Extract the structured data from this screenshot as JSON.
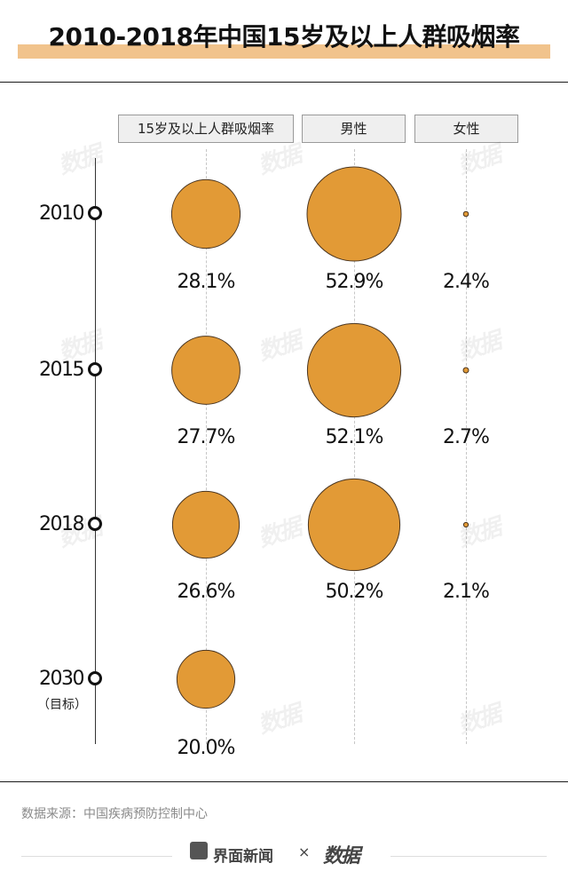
{
  "title": "2010-2018年中国15岁及以上人群吸烟率",
  "chart_data": {
    "type": "bubble",
    "title": "2010-2018年中国15岁及以上人群吸烟率",
    "columns": [
      "15岁及以上人群吸烟率",
      "男性",
      "女性"
    ],
    "rows": [
      {
        "year": "2010",
        "note": "",
        "values": [
          28.1,
          52.9,
          2.4
        ],
        "labels": [
          "28.1%",
          "52.9%",
          "2.4%"
        ]
      },
      {
        "year": "2015",
        "note": "",
        "values": [
          27.7,
          52.1,
          2.7
        ],
        "labels": [
          "27.7%",
          "52.1%",
          "2.7%"
        ]
      },
      {
        "year": "2018",
        "note": "",
        "values": [
          26.6,
          50.2,
          2.1
        ],
        "labels": [
          "26.6%",
          "50.2%",
          "2.1%"
        ]
      },
      {
        "year": "2030",
        "note": "（目标）",
        "values": [
          20.0,
          null,
          null
        ],
        "labels": [
          "20.0%",
          "",
          ""
        ]
      }
    ],
    "color": "#e29a36",
    "stroke": "#4a3520"
  },
  "source": "数据来源：中国疾病预防控制中心",
  "footer": {
    "brand": "界面新闻",
    "separator": "×",
    "partner": "数据"
  },
  "watermark": "数据"
}
